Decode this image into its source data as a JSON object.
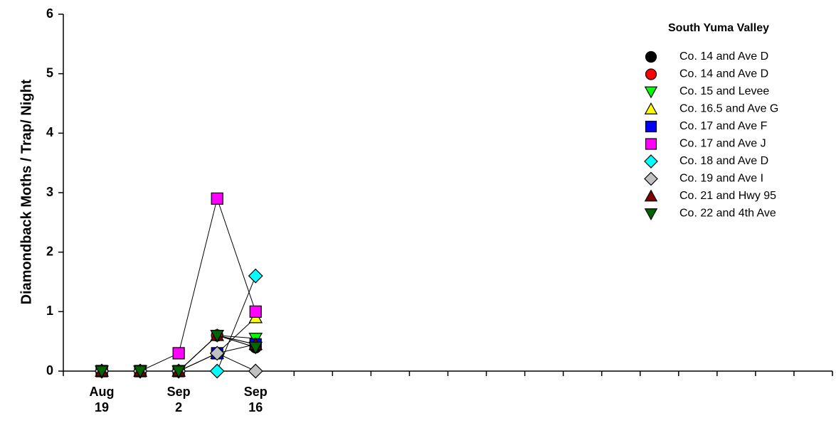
{
  "chart_data": {
    "type": "line",
    "y_label": "Diamondback Moths / Trap/ Night",
    "legend_title": "South Yuma Valley",
    "legend_position": "upper right",
    "categories": [
      "Aug\n19",
      null,
      "Sep\n2",
      null,
      "Sep\n16",
      null,
      null,
      null,
      null,
      null,
      null,
      null,
      null,
      null,
      null,
      null,
      null,
      null,
      null,
      null
    ],
    "ylim": [
      0,
      6
    ],
    "yticks": [
      0,
      1,
      2,
      3,
      4,
      5,
      6
    ],
    "line_color": "#000000",
    "series": [
      {
        "name": "Co. 14 and Ave D",
        "color": "#000000",
        "marker": "circle",
        "values": [
          0,
          0,
          0,
          0.6,
          0.4,
          null,
          null,
          null,
          null,
          null,
          null,
          null,
          null,
          null,
          null,
          null,
          null,
          null,
          null,
          null
        ]
      },
      {
        "name": "Co. 14 and Ave D",
        "color": "#ff0000",
        "marker": "circle",
        "values": [
          0,
          0,
          0,
          0.6,
          0.45,
          null,
          null,
          null,
          null,
          null,
          null,
          null,
          null,
          null,
          null,
          null,
          null,
          null,
          null,
          null
        ]
      },
      {
        "name": "Co. 15 and Levee",
        "color": "#00ff00",
        "marker": "triangle-down",
        "values": [
          0,
          0,
          0,
          0.6,
          0.55,
          null,
          null,
          null,
          null,
          null,
          null,
          null,
          null,
          null,
          null,
          null,
          null,
          null,
          null,
          null
        ]
      },
      {
        "name": "Co. 16.5 and Ave G",
        "color": "#ffff00",
        "marker": "triangle-up",
        "values": [
          0,
          0,
          0,
          0.3,
          0.9,
          null,
          null,
          null,
          null,
          null,
          null,
          null,
          null,
          null,
          null,
          null,
          null,
          null,
          null,
          null
        ]
      },
      {
        "name": "Co. 17 and Ave F",
        "color": "#0000ff",
        "marker": "square",
        "values": [
          0,
          0,
          0,
          0.3,
          0.45,
          null,
          null,
          null,
          null,
          null,
          null,
          null,
          null,
          null,
          null,
          null,
          null,
          null,
          null,
          null
        ]
      },
      {
        "name": "Co. 17 and Ave J",
        "color": "#ff00ff",
        "marker": "square",
        "values": [
          0,
          0,
          0.3,
          2.9,
          1.0,
          null,
          null,
          null,
          null,
          null,
          null,
          null,
          null,
          null,
          null,
          null,
          null,
          null,
          null,
          null
        ]
      },
      {
        "name": "Co. 18 and Ave D",
        "color": "#00ffff",
        "marker": "diamond",
        "values": [
          0,
          0,
          0,
          0,
          1.6,
          null,
          null,
          null,
          null,
          null,
          null,
          null,
          null,
          null,
          null,
          null,
          null,
          null,
          null,
          null
        ]
      },
      {
        "name": "Co. 19 and Ave I",
        "color": "#c0c0c0",
        "marker": "diamond",
        "values": [
          0,
          0,
          0,
          0.3,
          0,
          null,
          null,
          null,
          null,
          null,
          null,
          null,
          null,
          null,
          null,
          null,
          null,
          null,
          null,
          null
        ]
      },
      {
        "name": "Co. 21 and Hwy 95",
        "color": "#800000",
        "marker": "triangle-up",
        "values": [
          0,
          0,
          0,
          0.6,
          0.45,
          null,
          null,
          null,
          null,
          null,
          null,
          null,
          null,
          null,
          null,
          null,
          null,
          null,
          null,
          null
        ]
      },
      {
        "name": "Co. 22 and 4th Ave",
        "color": "#006400",
        "marker": "triangle-down",
        "values": [
          0,
          0,
          0,
          0.6,
          0.4,
          null,
          null,
          null,
          null,
          null,
          null,
          null,
          null,
          null,
          null,
          null,
          null,
          null,
          null,
          null
        ]
      }
    ]
  }
}
